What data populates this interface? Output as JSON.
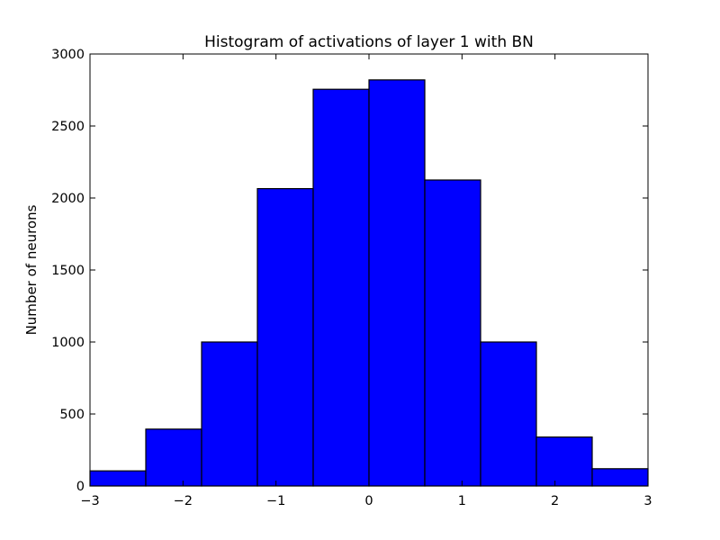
{
  "chart_data": {
    "type": "bar",
    "title": "Histogram of activations of layer 1  with BN",
    "xlabel": "",
    "ylabel": "Number of neurons",
    "xlim": [
      -3,
      3
    ],
    "ylim": [
      0,
      3000
    ],
    "bins": [
      {
        "start": -3.0,
        "end": -2.4,
        "value": 105
      },
      {
        "start": -2.4,
        "end": -1.8,
        "value": 395
      },
      {
        "start": -1.8,
        "end": -1.2,
        "value": 1000
      },
      {
        "start": -1.2,
        "end": -0.6,
        "value": 2065
      },
      {
        "start": -0.6,
        "end": 0.0,
        "value": 2755
      },
      {
        "start": 0.0,
        "end": 0.6,
        "value": 2820
      },
      {
        "start": 0.6,
        "end": 1.2,
        "value": 2125
      },
      {
        "start": 1.2,
        "end": 1.8,
        "value": 1000
      },
      {
        "start": 1.8,
        "end": 2.4,
        "value": 340
      },
      {
        "start": 2.4,
        "end": 3.0,
        "value": 120
      }
    ],
    "x_ticks": [
      {
        "value": -3,
        "label": "−3"
      },
      {
        "value": -2,
        "label": "−2"
      },
      {
        "value": -1,
        "label": "−1"
      },
      {
        "value": 0,
        "label": "0"
      },
      {
        "value": 1,
        "label": "1"
      },
      {
        "value": 2,
        "label": "2"
      },
      {
        "value": 3,
        "label": "3"
      }
    ],
    "y_ticks": [
      {
        "value": 0,
        "label": "0"
      },
      {
        "value": 500,
        "label": "500"
      },
      {
        "value": 1000,
        "label": "1000"
      },
      {
        "value": 1500,
        "label": "1500"
      },
      {
        "value": 2000,
        "label": "2000"
      },
      {
        "value": 2500,
        "label": "2500"
      },
      {
        "value": 3000,
        "label": "3000"
      }
    ],
    "bar_color": "#0000ff",
    "edge_color": "#000000",
    "grid": false,
    "legend": "none"
  }
}
